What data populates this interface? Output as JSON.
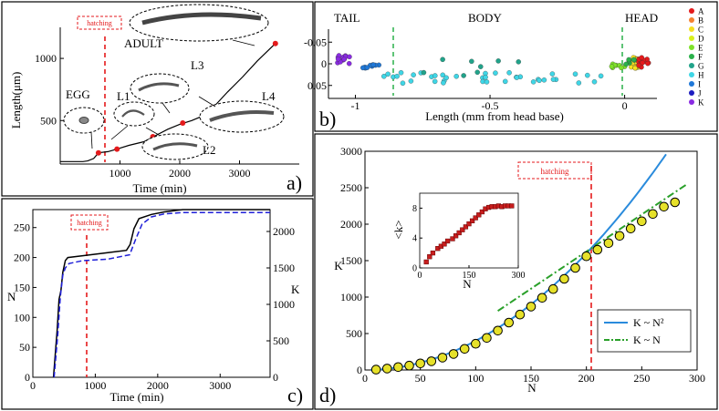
{
  "chart_data": [
    {
      "id": "a",
      "type": "line",
      "panel_label": "a)",
      "xlabel": "Time (min)",
      "ylabel": "Length(μm)",
      "xlim": [
        0,
        4000
      ],
      "ylim": [
        150,
        1250
      ],
      "xticks": [
        "1000",
        "2000",
        "3000"
      ],
      "yticks": [
        "500",
        "1000"
      ],
      "hatching_label": "hatching",
      "hatching_x": 800,
      "stage_labels": [
        "EGG",
        "L1",
        "L3",
        "L4",
        "L2",
        "ADULT"
      ],
      "x": [
        0,
        380,
        460,
        560,
        640,
        800,
        950,
        1150,
        1400,
        1600,
        1800,
        2000,
        2200,
        2400,
        2550,
        2800,
        3050,
        3300,
        3600
      ],
      "y": [
        170,
        170,
        175,
        195,
        240,
        250,
        270,
        300,
        330,
        380,
        430,
        470,
        500,
        540,
        600,
        730,
        850,
        980,
        1120
      ],
      "markers": {
        "x": [
          640,
          950,
          1550,
          2050,
          2550,
          3600
        ],
        "y": [
          240,
          270,
          370,
          480,
          600,
          1120
        ]
      }
    },
    {
      "id": "b",
      "type": "scatter",
      "panel_label": "b)",
      "xlabel": "Length (mm from head base)",
      "region_labels": [
        "TAIL",
        "BODY",
        "HEAD"
      ],
      "xlim": [
        -1.1,
        0.12
      ],
      "ylim": [
        0.08,
        -0.08
      ],
      "xticks": [
        "-1",
        "-0.5",
        "0"
      ],
      "yticks": [
        "-0.05",
        "0",
        "0.05"
      ],
      "legend": [
        "A",
        "B",
        "C",
        "D",
        "E",
        "F",
        "G",
        "H",
        "I",
        "J",
        "K"
      ],
      "colors": [
        "#e41a1c",
        "#f58231",
        "#f5e020",
        "#d8f01c",
        "#7ee22a",
        "#2ab14a",
        "#21a38a",
        "#3fd6e6",
        "#1f78d8",
        "#1c1cc0",
        "#8a2be2"
      ]
    },
    {
      "id": "c",
      "type": "line",
      "panel_label": "c)",
      "xlabel": "Time (min)",
      "ylabel_left": "N",
      "ylabel_right": "K",
      "xlim": [
        0,
        3800
      ],
      "ylim_left": [
        0,
        280
      ],
      "ylim_right": [
        0,
        2300
      ],
      "xticks": [
        "0",
        "1000",
        "2000",
        "3000"
      ],
      "yticks_left": [
        "0",
        "50",
        "100",
        "150",
        "200",
        "250"
      ],
      "yticks_right": [
        "0",
        "500",
        "1000",
        "1500",
        "2000"
      ],
      "hatching_label": "hatching",
      "hatching_x": 800,
      "series": [
        {
          "name": "N",
          "color": "#000000",
          "x": [
            330,
            390,
            420,
            450,
            480,
            520,
            560,
            800,
            1200,
            1500,
            1560,
            1620,
            1700,
            1900,
            2100,
            2400,
            3800
          ],
          "values": [
            0,
            80,
            130,
            145,
            175,
            195,
            200,
            203,
            208,
            212,
            222,
            248,
            265,
            272,
            276,
            280,
            280
          ]
        },
        {
          "name": "K",
          "color": "#1f1fd8",
          "x": [
            340,
            400,
            440,
            480,
            520,
            580,
            800,
            1200,
            1550,
            1650,
            1750,
            1900,
            2100,
            2400,
            3800
          ],
          "values": [
            0,
            600,
            1100,
            1400,
            1500,
            1560,
            1600,
            1620,
            1680,
            1900,
            2100,
            2200,
            2240,
            2260,
            2260
          ]
        }
      ]
    },
    {
      "id": "d",
      "type": "scatter",
      "panel_label": "d)",
      "xlabel": "N",
      "ylabel": "K",
      "xlim": [
        0,
        300
      ],
      "ylim": [
        0,
        3000
      ],
      "xticks": [
        "0",
        "50",
        "100",
        "150",
        "200",
        "250",
        "300"
      ],
      "yticks": [
        "0",
        "500",
        "1000",
        "1500",
        "2000",
        "2500",
        "3000"
      ],
      "hatching_label": "hatching",
      "hatching_x": 200,
      "legend": [
        "K ~ N²",
        "K ~ N"
      ],
      "x": [
        10,
        20,
        30,
        40,
        50,
        60,
        70,
        80,
        90,
        100,
        110,
        120,
        130,
        140,
        150,
        160,
        170,
        180,
        190,
        200,
        210,
        220,
        230,
        240,
        250,
        260,
        270,
        280
      ],
      "values": [
        5,
        20,
        40,
        60,
        90,
        120,
        170,
        220,
        290,
        360,
        440,
        540,
        650,
        760,
        870,
        990,
        1110,
        1250,
        1400,
        1560,
        1650,
        1740,
        1840,
        1940,
        2040,
        2140,
        2240,
        2300
      ],
      "inset": {
        "xlabel": "N",
        "ylabel": "<k>",
        "xlim": [
          0,
          300
        ],
        "ylim": [
          0,
          10
        ],
        "xticks": [
          "0",
          "150",
          "300"
        ],
        "yticks": [
          "0",
          "4",
          "8"
        ],
        "x": [
          20,
          30,
          40,
          55,
          65,
          75,
          85,
          100,
          110,
          120,
          130,
          140,
          150,
          160,
          170,
          180,
          190,
          200,
          210,
          220,
          230,
          240,
          250,
          260,
          270,
          280
        ],
        "values": [
          0.8,
          1.5,
          2.0,
          2.6,
          2.9,
          3.2,
          3.6,
          3.9,
          4.3,
          4.7,
          5.1,
          5.5,
          5.9,
          6.3,
          6.7,
          7.1,
          7.5,
          7.9,
          8.1,
          8.2,
          8.2,
          8.3,
          8.2,
          8.3,
          8.3,
          8.3
        ]
      }
    }
  ]
}
